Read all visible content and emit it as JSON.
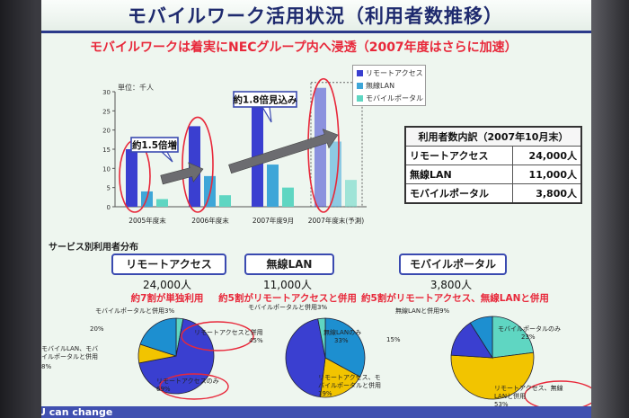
{
  "slide": {
    "title": "モバイルワーク活用状況（利用者数推移）",
    "subtitle": "モバイルワークは着実にNECグループ内へ浸透（2007年度はさらに加速）",
    "footer": "U can change",
    "colors": {
      "accent_red": "#e8283a",
      "title_blue": "#1e2a6e",
      "slide_bg": "#eef6ef"
    }
  },
  "chart_data": {
    "type": "bar",
    "title": "",
    "unit_label": "単位：千人",
    "categories": [
      "2005年度末",
      "2006年度末",
      "2007年度9月",
      "2007年度末(予測)"
    ],
    "series": [
      {
        "name": "リモートアクセス",
        "color": "#3a3fd0",
        "values": [
          15,
          21,
          26,
          31
        ]
      },
      {
        "name": "無線LAN",
        "color": "#3ea6d8",
        "values": [
          4,
          8,
          11,
          17
        ]
      },
      {
        "name": "モバイルポータル",
        "color": "#5fd6c2",
        "values": [
          2,
          3,
          5,
          7
        ]
      }
    ],
    "projected_category_index": 3,
    "ylim": [
      0,
      30
    ],
    "yticks": [
      0,
      5,
      10,
      15,
      20,
      25,
      30
    ],
    "grid": false,
    "legend_position": "top-right",
    "annotations": [
      "約1.5倍増",
      "約1.8倍見込み"
    ]
  },
  "users_table": {
    "header": "利用者数内訳（2007年10月末）",
    "rows": [
      {
        "label": "リモートアクセス",
        "value": "24,000人"
      },
      {
        "label": "無線LAN",
        "value": "11,000人"
      },
      {
        "label": "モバイルポータル",
        "value": "3,800人"
      }
    ]
  },
  "services": {
    "heading": "サービス別利用者分布",
    "items": [
      {
        "name": "リモートアクセス",
        "count": "24,000人",
        "note": "約7割が単独利用",
        "pie": [
          {
            "label": "リモートアクセスのみ",
            "pct_label": "69%",
            "value": 69,
            "color": "#3a3fd0"
          },
          {
            "label": "モバイルLAN、モバイルポータルと併用",
            "pct_label": "8%",
            "value": 8,
            "color": "#f2c400"
          },
          {
            "label": "モバイルポータルと併用",
            "pct_label": "20%",
            "value": 20,
            "color": "#1d8fd0"
          },
          {
            "label": "",
            "pct_label": "3%",
            "value": 3,
            "color": "#5fd6c2"
          }
        ]
      },
      {
        "name": "無線LAN",
        "count": "11,000人",
        "note": "約5割がリモートアクセスと併用",
        "pie": [
          {
            "label": "無線LANのみ",
            "pct_label": "33%",
            "value": 33,
            "color": "#1d8fd0"
          },
          {
            "label": "リモートアクセス、モバイルポータルと併用",
            "pct_label": "19%",
            "value": 19,
            "color": "#f2c400"
          },
          {
            "label": "リモートアクセスと併用",
            "pct_label": "45%",
            "value": 45,
            "color": "#3a3fd0"
          },
          {
            "label": "モバイルポータルと併用",
            "pct_label": "3%",
            "value": 3,
            "color": "#5fd6c2"
          }
        ]
      },
      {
        "name": "モバイルポータル",
        "count": "3,800人",
        "note": "約5割がリモートアクセス、無線LANと併用",
        "pie": [
          {
            "label": "モバイルポータルのみ",
            "pct_label": "23%",
            "value": 23,
            "color": "#5fd6c2"
          },
          {
            "label": "リモートアクセス、無線LANと併用",
            "pct_label": "53%",
            "value": 53,
            "color": "#f2c400"
          },
          {
            "label": "無線LANと併用",
            "pct_label": "15%",
            "value": 15,
            "color": "#3a3fd0"
          },
          {
            "label": "",
            "pct_label": "9%",
            "value": 9,
            "color": "#1d8fd0"
          }
        ]
      }
    ]
  }
}
